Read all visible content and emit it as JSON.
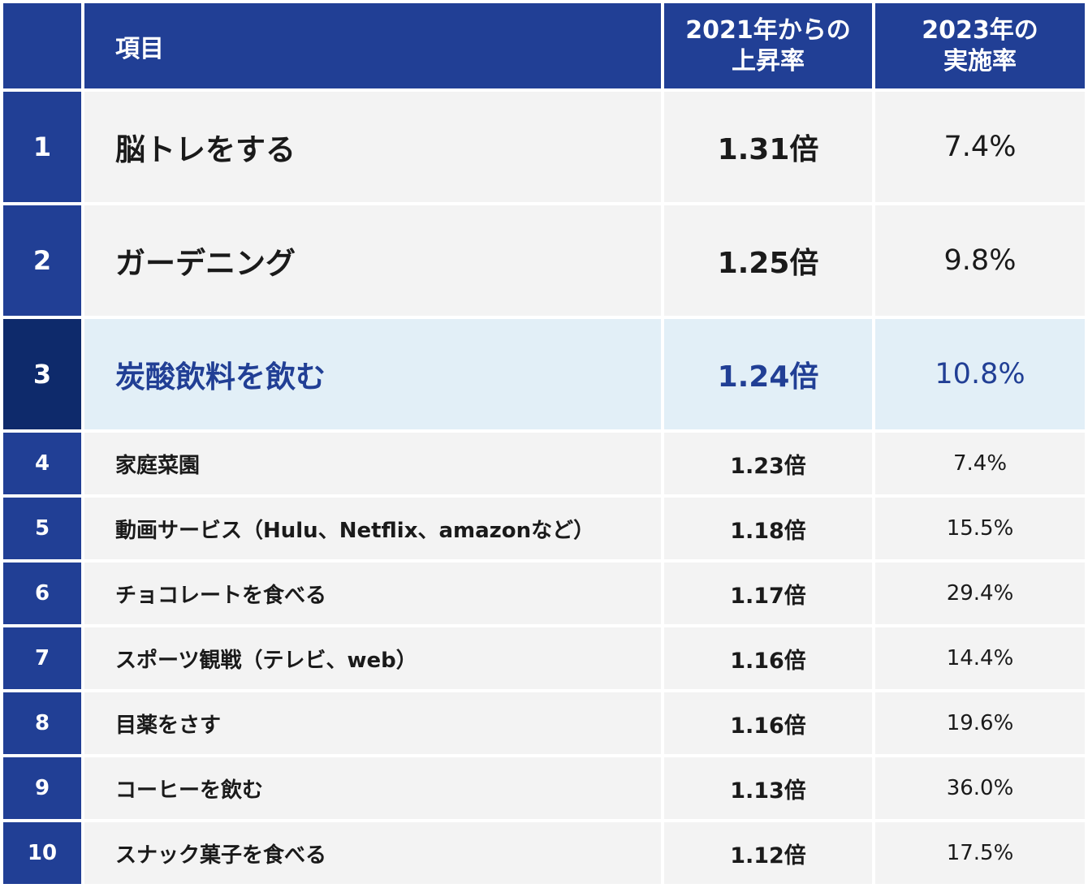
{
  "colors": {
    "header_bg": "#213f95",
    "header_text": "#ffffff",
    "row_bg": "#f3f3f3",
    "highlight_bg": "#e2eff7",
    "highlight_rank_bg": "#0e2a6b",
    "highlight_text": "#213f95"
  },
  "chart_data": {
    "type": "table",
    "columns": [
      "",
      "項目",
      "2021年からの 上昇率",
      "2023年の 実施率"
    ],
    "header": {
      "item": "項目",
      "rate_line1": "2021年からの",
      "rate_line2": "上昇率",
      "pct_line1": "2023年の",
      "pct_line2": "実施率"
    },
    "rows": [
      {
        "rank": "1",
        "item": "脳トレをする",
        "rate": "1.31倍",
        "pct": "7.4%"
      },
      {
        "rank": "2",
        "item": "ガーデニング",
        "rate": "1.25倍",
        "pct": "9.8%"
      },
      {
        "rank": "3",
        "item": "炭酸飲料を飲む",
        "rate": "1.24倍",
        "pct": "10.8%"
      },
      {
        "rank": "4",
        "item": "家庭菜園",
        "rate": "1.23倍",
        "pct": "7.4%"
      },
      {
        "rank": "5",
        "item": "動画サービス（Hulu、Netflix、amazonなど）",
        "rate": "1.18倍",
        "pct": "15.5%"
      },
      {
        "rank": "6",
        "item": "チョコレートを食べる",
        "rate": "1.17倍",
        "pct": "29.4%"
      },
      {
        "rank": "7",
        "item": "スポーツ観戦（テレビ、web）",
        "rate": "1.16倍",
        "pct": "14.4%"
      },
      {
        "rank": "8",
        "item": "目薬をさす",
        "rate": "1.16倍",
        "pct": "19.6%"
      },
      {
        "rank": "9",
        "item": "コーヒーを飲む",
        "rate": "1.13倍",
        "pct": "36.0%"
      },
      {
        "rank": "10",
        "item": "スナック菓子を食べる",
        "rate": "1.12倍",
        "pct": "17.5%"
      }
    ]
  }
}
